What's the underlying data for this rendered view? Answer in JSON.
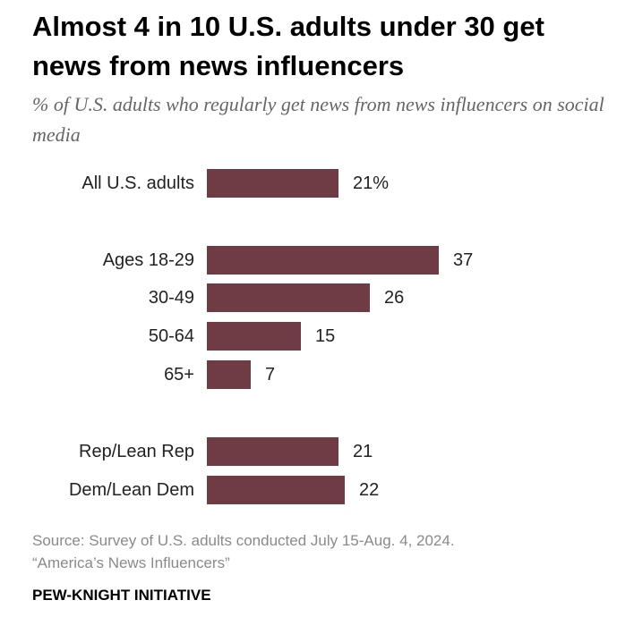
{
  "title": "Almost 4 in 10 U.S. adults under 30 get news from news influencers",
  "subtitle": "% of U.S. adults who regularly get news from news influencers on social media",
  "chart_data": {
    "type": "bar",
    "orientation": "horizontal",
    "categories": [
      "All U.S. adults",
      "Ages 18-29",
      "30-49",
      "50-64",
      "65+",
      "Rep/Lean Rep",
      "Dem/Lean Dem"
    ],
    "values": [
      21,
      37,
      26,
      15,
      7,
      21,
      22
    ],
    "value_labels": [
      "21%",
      "37",
      "26",
      "15",
      "7",
      "21",
      "22"
    ],
    "bar_color": "#6f3c45",
    "grid": false,
    "legend": "none"
  },
  "source": {
    "line1": "Source: Survey of U.S. adults conducted July 15-Aug. 4, 2024.",
    "line2": "“America’s News Influencers”"
  },
  "brand": "PEW-KNIGHT INITIATIVE"
}
